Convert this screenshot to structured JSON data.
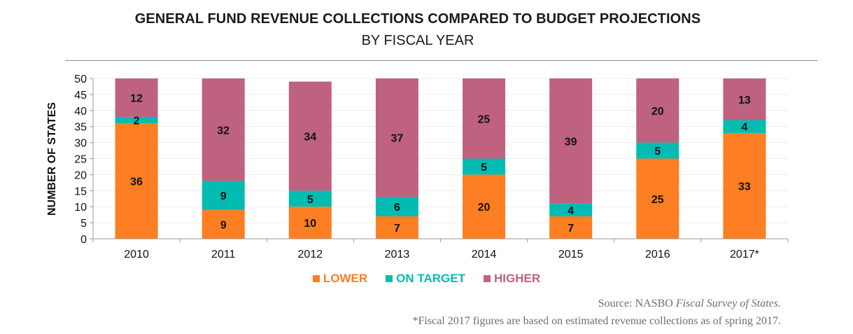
{
  "chart_data": {
    "type": "bar",
    "stacked": true,
    "title": "GENERAL FUND REVENUE COLLECTIONS COMPARED TO BUDGET PROJECTIONS",
    "subtitle": "BY FISCAL YEAR",
    "xlabel": "",
    "ylabel": "NUMBER OF STATES",
    "ylim": [
      0,
      50
    ],
    "yticks": [
      0,
      5,
      10,
      15,
      20,
      25,
      30,
      35,
      40,
      45,
      50
    ],
    "grid": true,
    "legend_position": "bottom-center",
    "categories": [
      "2010",
      "2011",
      "2012",
      "2013",
      "2014",
      "2015",
      "2016",
      "2017*"
    ],
    "series": [
      {
        "name": "LOWER",
        "color": "#fd7e23",
        "values": [
          36,
          9,
          10,
          7,
          20,
          7,
          25,
          33
        ]
      },
      {
        "name": "ON TARGET",
        "color": "#02bcb2",
        "values": [
          2,
          9,
          5,
          6,
          5,
          4,
          5,
          4
        ]
      },
      {
        "name": "HIGHER",
        "color": "#be627f",
        "values": [
          12,
          32,
          34,
          37,
          25,
          39,
          20,
          13
        ]
      }
    ]
  },
  "header": {
    "title": "GENERAL FUND REVENUE COLLECTIONS COMPARED TO BUDGET PROJECTIONS",
    "subtitle": "BY FISCAL YEAR"
  },
  "footer": {
    "source_prefix": "Source: NASBO ",
    "source_title": "Fiscal Survey of States",
    "source_suffix": ".",
    "footnote": "*Fiscal 2017 figures are based on estimated revenue collections as of spring 2017."
  }
}
